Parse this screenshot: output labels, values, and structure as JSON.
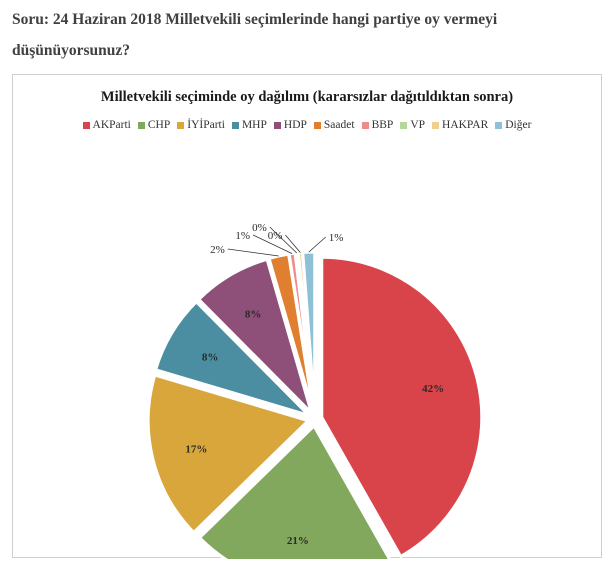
{
  "question": {
    "line1": "Soru: 24 Haziran 2018 Milletvekili seçimlerinde hangi partiye oy vermeyi",
    "line2": "düşünüyorsunuz?"
  },
  "chart_data": {
    "type": "pie",
    "title": "Milletvekili seçiminde oy dağılımı (kararsızlar dağıtıldıktan sonra)",
    "legend_position": "top",
    "slices": [
      {
        "name": "AKParti",
        "value": 42,
        "label": "42%",
        "color": "#d9434a"
      },
      {
        "name": "CHP",
        "value": 21,
        "label": "21%",
        "color": "#82a85e"
      },
      {
        "name": "İYİParti",
        "value": 17,
        "label": "17%",
        "color": "#d9a63c"
      },
      {
        "name": "MHP",
        "value": 8,
        "label": "8%",
        "color": "#4b8ea1"
      },
      {
        "name": "HDP",
        "value": 8,
        "label": "8%",
        "color": "#8e4f78"
      },
      {
        "name": "Saadet",
        "value": 2,
        "label": "2%",
        "color": "#e07f2f"
      },
      {
        "name": "BBP",
        "value": 0.6,
        "label": "1%",
        "color": "#ee8c8c"
      },
      {
        "name": "VP",
        "value": 0.3,
        "label": "0%",
        "color": "#b7d69a"
      },
      {
        "name": "HAKPAR",
        "value": 0.4,
        "label": "0%",
        "color": "#f1ce8c"
      },
      {
        "name": "Diğer",
        "value": 1.2,
        "label": "1%",
        "color": "#8ec1d6"
      }
    ]
  }
}
